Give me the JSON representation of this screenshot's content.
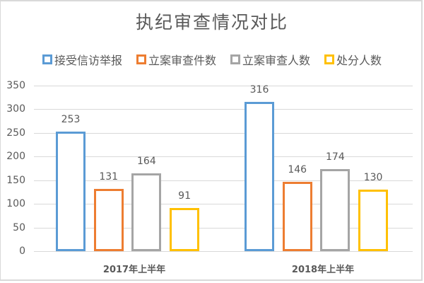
{
  "chart_data": {
    "type": "bar",
    "title": "执纪审查情况对比",
    "categories": [
      "2017年上半年",
      "2018年上半年"
    ],
    "series": [
      {
        "name": "接受信访举报",
        "color": "#5b9bd5",
        "values": [
          253,
          316
        ]
      },
      {
        "name": "立案审查件数",
        "color": "#ed7d31",
        "values": [
          131,
          146
        ]
      },
      {
        "name": "立案审查人数",
        "color": "#a5a5a5",
        "values": [
          164,
          174
        ]
      },
      {
        "name": "处分人数",
        "color": "#ffc000",
        "values": [
          91,
          130
        ]
      }
    ],
    "xlabel": "",
    "ylabel": "",
    "ylim": [
      0,
      350
    ],
    "yticks": [
      "0",
      "50",
      "100",
      "150",
      "200",
      "250",
      "300",
      "350"
    ],
    "grid": true,
    "legend_position": "top",
    "bar_style": "outline"
  }
}
